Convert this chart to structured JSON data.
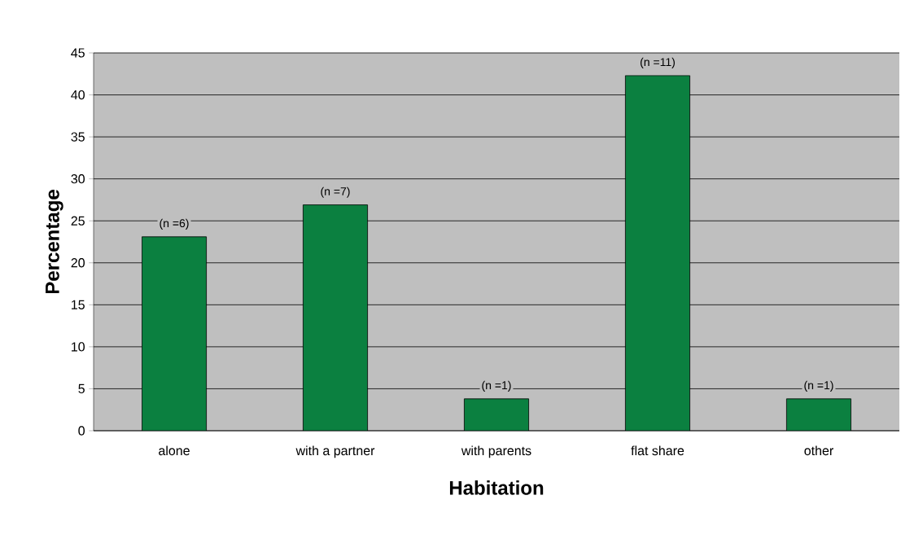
{
  "chart_data": {
    "type": "bar",
    "xlabel": "Habitation",
    "ylabel": "Percentage",
    "categories": [
      "alone",
      "with a partner",
      "with parents",
      "flat share",
      "other"
    ],
    "values": [
      23.1,
      26.9,
      3.8,
      42.3,
      3.8
    ],
    "annotations": [
      {
        "text": "(n =6)",
        "x": "alone",
        "y": 23.1
      },
      {
        "text": "(n =7)",
        "x": "with a partner",
        "y": 26.9
      },
      {
        "text": "(n =1)",
        "x": "with parents",
        "y": 3.8
      },
      {
        "text": "(n =11)",
        "x": "flat share",
        "y": 42.3
      },
      {
        "text": "(n =1)",
        "x": "other",
        "y": 3.8
      }
    ],
    "color": "#0b8040",
    "ylim": [
      0,
      45
    ],
    "yticks": [
      0,
      5,
      10,
      15,
      20,
      25,
      30,
      35,
      40,
      45
    ],
    "grid": "y"
  }
}
